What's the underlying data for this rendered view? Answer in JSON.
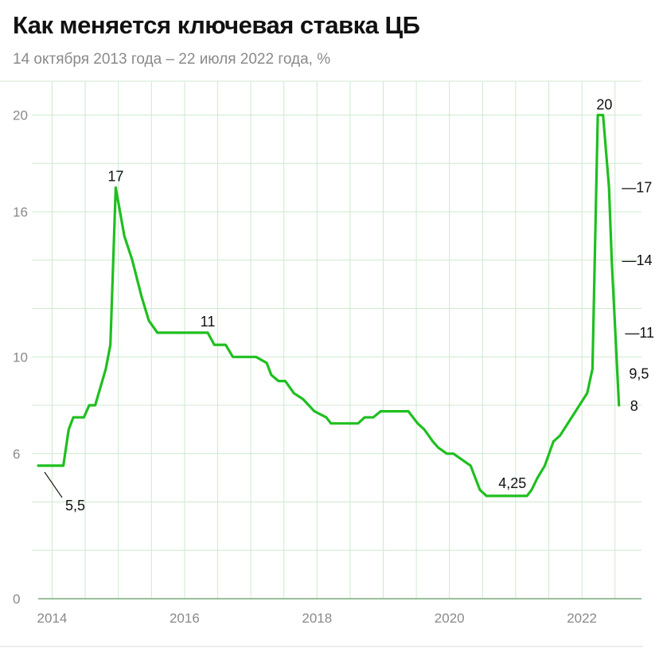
{
  "title": "Как меняется ключевая ставка ЦБ",
  "subtitle": "14 октября 2013 года – 22 июля 2022 года, %",
  "colors": {
    "line": "#1fbf1f",
    "grid": "#cfe8cf",
    "axis": "#7aaa7a",
    "text": "#111111",
    "muted": "#8a8a8a"
  },
  "chart_data": {
    "type": "line",
    "title": "Как меняется ключевая ставка ЦБ",
    "subtitle": "14 октября 2013 года – 22 июля 2022 года, %",
    "xlabel": "",
    "ylabel": "",
    "xlim": [
      2013.79,
      2022.9
    ],
    "ylim": [
      0,
      20
    ],
    "x_ticks": [
      2014,
      2016,
      2018,
      2020,
      2022
    ],
    "x_tick_labels": [
      "2014",
      "2016",
      "2018",
      "2020",
      "2022"
    ],
    "y_ticks": [
      0,
      6,
      10,
      16,
      20
    ],
    "y_tick_labels": [
      "0",
      "6",
      "10",
      "16",
      "20"
    ],
    "grid": true,
    "series": [
      {
        "name": "",
        "x": [
          2013.79,
          2014.13,
          2014.17,
          2014.25,
          2014.32,
          2014.48,
          2014.56,
          2014.65,
          2014.81,
          2014.88,
          2014.96,
          2015.09,
          2015.21,
          2015.35,
          2015.46,
          2015.59,
          2016.35,
          2016.45,
          2016.62,
          2016.73,
          2017.08,
          2017.24,
          2017.31,
          2017.42,
          2017.52,
          2017.65,
          2017.79,
          2017.96,
          2018.14,
          2018.21,
          2018.62,
          2018.72,
          2018.85,
          2018.96,
          2019.38,
          2019.45,
          2019.52,
          2019.62,
          2019.75,
          2019.83,
          2019.96,
          2020.06,
          2020.32,
          2020.46,
          2020.56,
          2021.17,
          2021.24,
          2021.33,
          2021.44,
          2021.57,
          2021.67,
          2022.08,
          2022.16,
          2022.24,
          2022.32,
          2022.41,
          2022.45,
          2022.56
        ],
        "values": [
          5.5,
          5.5,
          5.5,
          7.0,
          7.5,
          7.5,
          8.0,
          8.0,
          9.5,
          10.5,
          17.0,
          15.0,
          14.0,
          12.5,
          11.5,
          11.0,
          11.0,
          10.5,
          10.5,
          10.0,
          10.0,
          9.75,
          9.25,
          9.0,
          9.0,
          8.5,
          8.25,
          7.75,
          7.5,
          7.25,
          7.25,
          7.5,
          7.5,
          7.75,
          7.75,
          7.5,
          7.25,
          7.0,
          6.5,
          6.25,
          6.0,
          6.0,
          5.5,
          4.5,
          4.25,
          4.25,
          4.5,
          5.0,
          5.5,
          6.5,
          6.75,
          8.5,
          9.5,
          20.0,
          20.0,
          17.0,
          14.0,
          8.0
        ]
      }
    ],
    "annotations": [
      {
        "label": "5,5",
        "x": 2013.79,
        "y": 5.5
      },
      {
        "label": "17",
        "x": 2014.96,
        "y": 17.0
      },
      {
        "label": "11",
        "x": 2016.35,
        "y": 11.0
      },
      {
        "label": "4,25",
        "x": 2020.95,
        "y": 4.25
      },
      {
        "label": "20",
        "x": 2022.28,
        "y": 20.0
      },
      {
        "label": "—17",
        "x": 2022.41,
        "y": 17.0
      },
      {
        "label": "—14",
        "x": 2022.45,
        "y": 14.0
      },
      {
        "label": "—11",
        "x": 2022.52,
        "y": 11.0
      },
      {
        "label": "9,5",
        "x": 2022.52,
        "y": 9.5
      },
      {
        "label": "8",
        "x": 2022.56,
        "y": 8.0
      }
    ]
  }
}
